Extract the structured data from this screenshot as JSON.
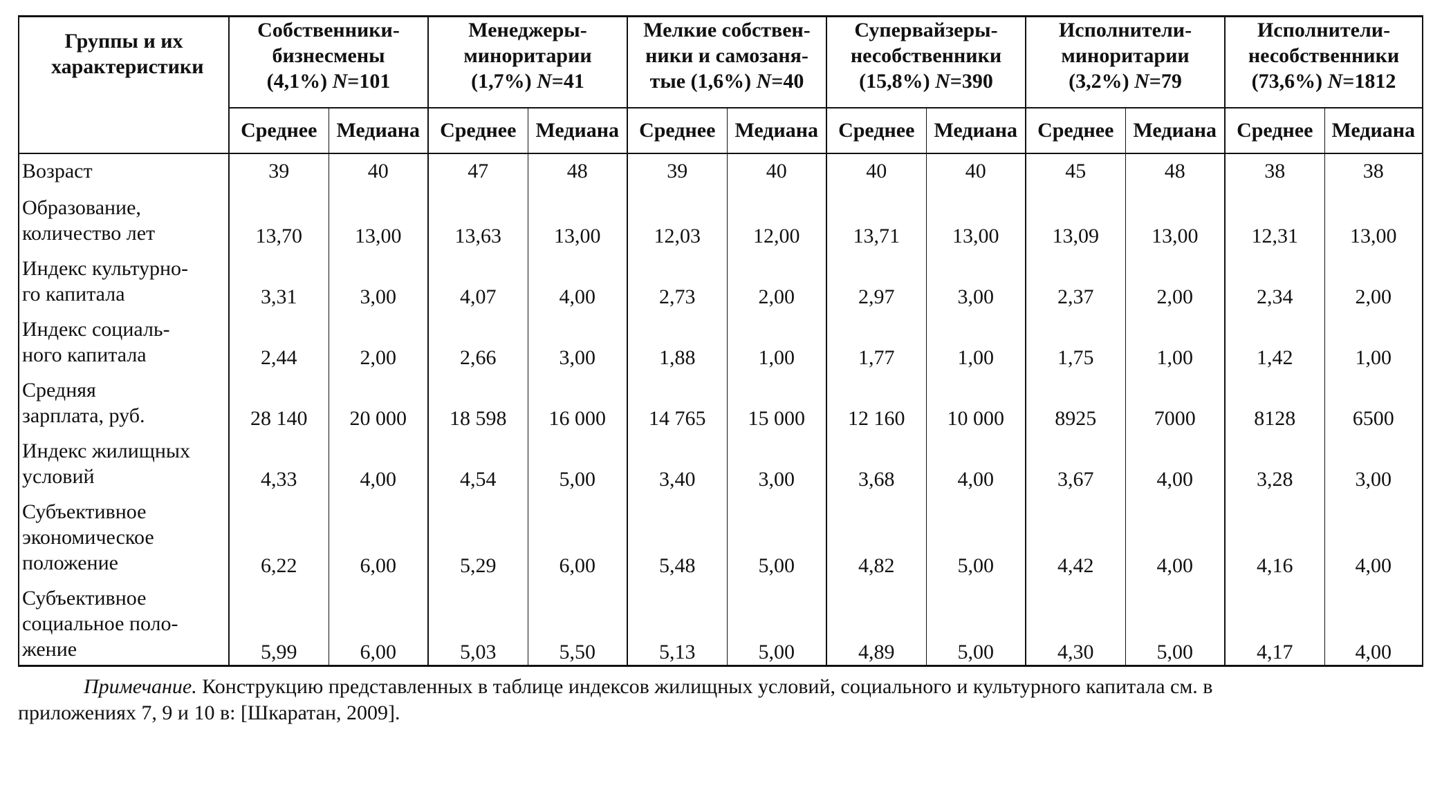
{
  "table": {
    "corner_header": "Группы и их характеристики",
    "groups": [
      {
        "line1": "Собственники-",
        "line2": "бизнесмены",
        "share": "(4,1%)",
        "n_label": "N",
        "n_value": "=101"
      },
      {
        "line1": "Менеджеры-",
        "line2": "миноритарии",
        "share": "(1,7%)",
        "n_label": "N",
        "n_value": "=41"
      },
      {
        "line1": "Мелкие собствен-",
        "line2": "ники и самозаня-",
        "share": "тые (1,6%)",
        "n_label": "N",
        "n_value": "=40"
      },
      {
        "line1": "Супервайзеры-",
        "line2": "несобственники",
        "share": "(15,8%)",
        "n_label": "N",
        "n_value": "=390"
      },
      {
        "line1": "Исполнители-",
        "line2": "миноритарии",
        "share": "(3,2%)",
        "n_label": "N",
        "n_value": "=79"
      },
      {
        "line1": "Исполнители-",
        "line2": "несобственники",
        "share": "(73,6%)",
        "n_label": "N",
        "n_value": "=1812"
      }
    ],
    "sub_headers": {
      "mean": "Среднее",
      "median": "Медиана"
    },
    "rows": [
      {
        "label": "Возраст",
        "values": [
          "39",
          "40",
          "47",
          "48",
          "39",
          "40",
          "40",
          "40",
          "45",
          "48",
          "38",
          "38"
        ]
      },
      {
        "label": "Образование,\nколичество лет",
        "values": [
          "13,70",
          "13,00",
          "13,63",
          "13,00",
          "12,03",
          "12,00",
          "13,71",
          "13,00",
          "13,09",
          "13,00",
          "12,31",
          "13,00"
        ]
      },
      {
        "label": "Индекс культурно-\nго капитала",
        "values": [
          "3,31",
          "3,00",
          "4,07",
          "4,00",
          "2,73",
          "2,00",
          "2,97",
          "3,00",
          "2,37",
          "2,00",
          "2,34",
          "2,00"
        ]
      },
      {
        "label": "Индекс социаль-\nного капитала",
        "values": [
          "2,44",
          "2,00",
          "2,66",
          "3,00",
          "1,88",
          "1,00",
          "1,77",
          "1,00",
          "1,75",
          "1,00",
          "1,42",
          "1,00"
        ]
      },
      {
        "label": "Средняя\nзарплата, руб.",
        "values": [
          "28 140",
          "20 000",
          "18 598",
          "16 000",
          "14 765",
          "15 000",
          "12 160",
          "10 000",
          "8925",
          "7000",
          "8128",
          "6500"
        ]
      },
      {
        "label": "Индекс жилищных\nусловий",
        "values": [
          "4,33",
          "4,00",
          "4,54",
          "5,00",
          "3,40",
          "3,00",
          "3,68",
          "4,00",
          "3,67",
          "4,00",
          "3,28",
          "3,00"
        ]
      },
      {
        "label": "Субъективное\nэкономическое\nположение",
        "values": [
          "6,22",
          "6,00",
          "5,29",
          "6,00",
          "5,48",
          "5,00",
          "4,82",
          "5,00",
          "4,42",
          "4,00",
          "4,16",
          "4,00"
        ]
      },
      {
        "label": "Субъективное\nсоциальное поло-\nжение",
        "values": [
          "5,99",
          "6,00",
          "5,03",
          "5,50",
          "5,13",
          "5,00",
          "4,89",
          "5,00",
          "4,30",
          "5,00",
          "4,17",
          "4,00"
        ]
      }
    ]
  },
  "note": {
    "label": "Примечание.",
    "text_line1": " Конструкцию представленных в таблице индексов жилищных условий, социального и культурного капитала см. в",
    "text_line2": "приложениях 7, 9 и 10 в: [Шкаратан, 2009]."
  }
}
